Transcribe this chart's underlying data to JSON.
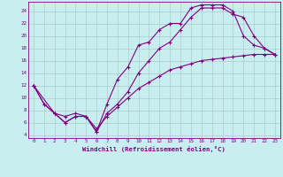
{
  "xlabel": "Windchill (Refroidissement éolien,°C)",
  "bg_color": "#c8eef0",
  "line_color": "#800080",
  "grid_color": "#aacccc",
  "xlim": [
    -0.5,
    23.5
  ],
  "ylim": [
    3.5,
    25.5
  ],
  "yticks": [
    4,
    6,
    8,
    10,
    12,
    14,
    16,
    18,
    20,
    22,
    24
  ],
  "xticks": [
    0,
    1,
    2,
    3,
    4,
    5,
    6,
    7,
    8,
    9,
    10,
    11,
    12,
    13,
    14,
    15,
    16,
    17,
    18,
    19,
    20,
    21,
    22,
    23
  ],
  "line1_x": [
    0,
    1,
    2,
    3,
    4,
    5,
    6,
    7,
    8,
    9,
    10,
    11,
    12,
    13,
    14,
    15,
    16,
    17,
    18,
    19,
    20,
    21,
    22,
    23
  ],
  "line1_y": [
    12,
    9,
    7.5,
    6,
    7,
    7,
    4.5,
    9,
    13,
    15,
    18.5,
    19,
    21,
    22,
    22,
    24.5,
    25,
    25,
    25,
    24,
    20,
    18.5,
    18,
    17
  ],
  "line2_x": [
    0,
    2,
    3,
    4,
    5,
    6,
    7,
    8,
    9,
    10,
    11,
    12,
    13,
    14,
    15,
    16,
    17,
    18,
    19,
    20,
    21,
    22,
    23
  ],
  "line2_y": [
    12,
    7.5,
    6,
    7,
    7,
    4.5,
    7.5,
    9,
    11,
    14,
    16,
    18,
    19,
    21,
    23,
    24.5,
    24.5,
    24.5,
    23.5,
    23,
    20,
    18,
    17
  ],
  "line3_x": [
    0,
    1,
    2,
    3,
    4,
    5,
    6,
    7,
    8,
    9,
    10,
    11,
    12,
    13,
    14,
    15,
    16,
    17,
    18,
    19,
    20,
    21,
    22,
    23
  ],
  "line3_y": [
    12,
    9,
    7.5,
    7,
    7.5,
    7,
    5,
    7,
    8.5,
    10,
    11.5,
    12.5,
    13.5,
    14.5,
    15,
    15.5,
    16,
    16.2,
    16.4,
    16.6,
    16.8,
    17,
    17,
    17
  ]
}
